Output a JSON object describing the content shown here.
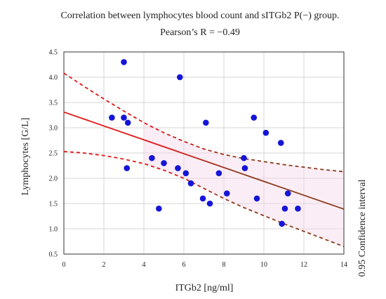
{
  "chart_data": {
    "type": "scatter",
    "title": "Correlation between lymphocytes blood count and sITGb2 P(−) group.",
    "subtitle": "Pearson’s R = −0.49",
    "xlabel": "ITGb2 [ng/ml]",
    "ylabel": "Lymphocytes [G/L]",
    "right_label": "0.95 Confidence interval",
    "xlim": [
      0,
      14
    ],
    "ylim": [
      0.5,
      4.5
    ],
    "x_ticks": [
      "0",
      "2",
      "4",
      "6",
      "8",
      "10",
      "12",
      "14"
    ],
    "y_ticks": [
      "0.5",
      "1.0",
      "1.5",
      "2.0",
      "2.5",
      "3.0",
      "3.5",
      "4.0",
      "4.5"
    ],
    "grid": true,
    "points": {
      "x": [
        2.4,
        3.0,
        3.0,
        3.15,
        3.2,
        4.4,
        4.75,
        5.0,
        5.7,
        5.8,
        6.1,
        6.35,
        6.95,
        7.1,
        7.3,
        7.75,
        8.15,
        9.0,
        9.05,
        9.5,
        9.65,
        10.1,
        10.85,
        10.9,
        11.05,
        11.2,
        11.7
      ],
      "y": [
        3.2,
        4.3,
        3.2,
        2.2,
        3.1,
        2.4,
        1.4,
        2.3,
        2.2,
        4.0,
        2.1,
        1.9,
        1.6,
        3.1,
        1.5,
        2.1,
        1.7,
        2.4,
        2.2,
        3.2,
        1.6,
        2.9,
        2.7,
        1.1,
        1.4,
        1.7,
        1.4
      ]
    },
    "regression_line": {
      "x": [
        0,
        14
      ],
      "y": [
        3.31,
        1.39
      ]
    },
    "confidence_upper": {
      "x": [
        0,
        1,
        2,
        3,
        4,
        5,
        6,
        7,
        8,
        9,
        10,
        11,
        12,
        13,
        14
      ],
      "y": [
        4.08,
        3.82,
        3.57,
        3.33,
        3.1,
        2.9,
        2.73,
        2.58,
        2.47,
        2.39,
        2.33,
        2.27,
        2.22,
        2.17,
        2.13
      ]
    },
    "confidence_lower": {
      "x": [
        0,
        1,
        2,
        3,
        4,
        5,
        6,
        7,
        8,
        9,
        10,
        11,
        12,
        13,
        14
      ],
      "y": [
        2.53,
        2.5,
        2.45,
        2.38,
        2.29,
        2.16,
        2.0,
        1.8,
        1.6,
        1.42,
        1.26,
        1.1,
        0.95,
        0.8,
        0.65
      ]
    },
    "colors": {
      "points": "#1515d8",
      "regression_red": "#e01818",
      "regression_brown": "#8b3a1a",
      "ci_red": "#e01818",
      "ci_brown": "#8b3a1a",
      "grid": "#d4d4d4",
      "band": "#f7d6ec"
    }
  }
}
